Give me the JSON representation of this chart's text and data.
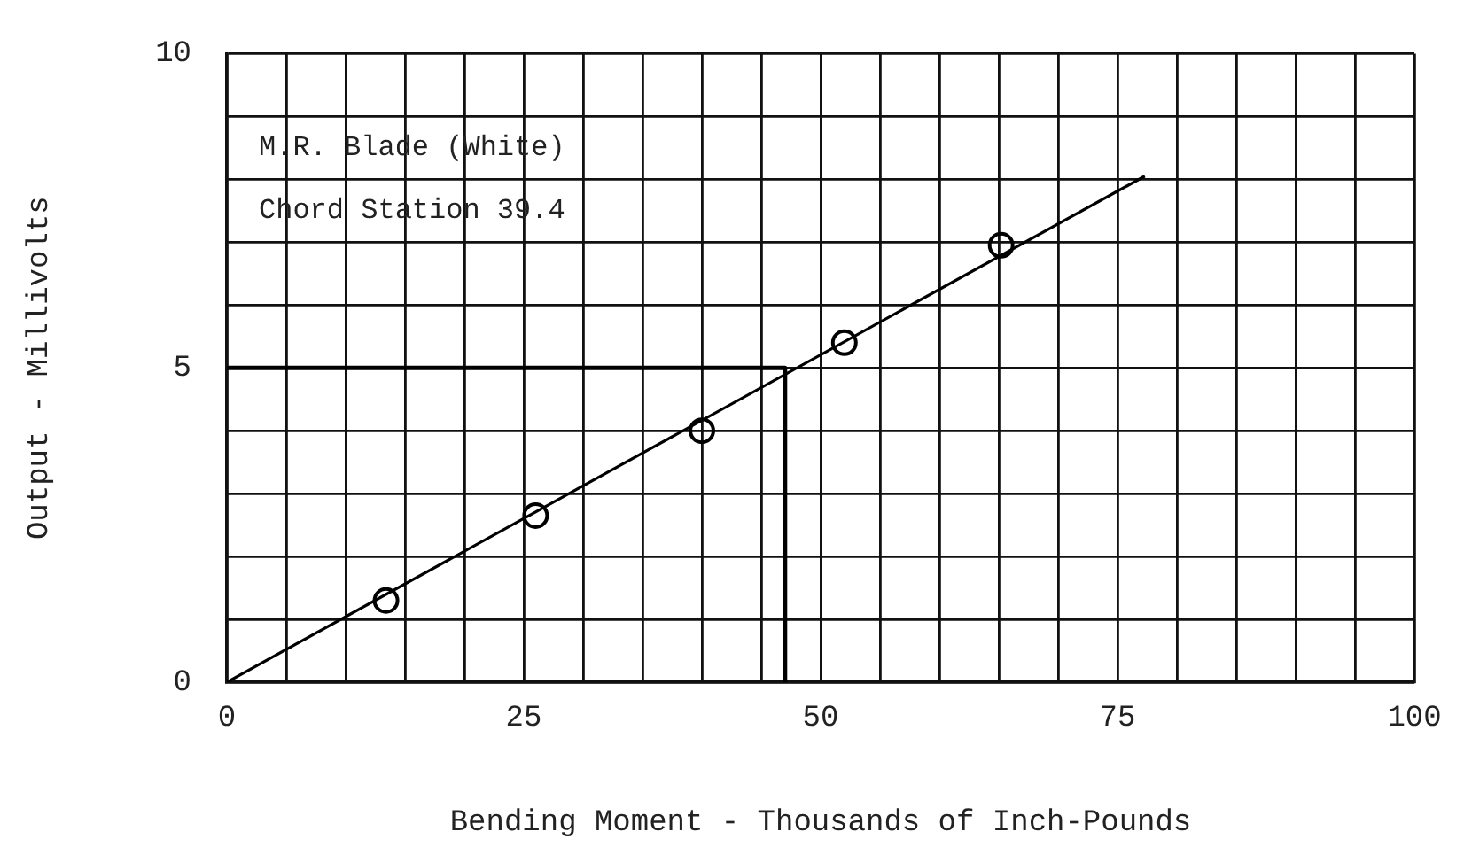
{
  "chart_data": {
    "type": "scatter",
    "xlabel": "Bending Moment - Thousands of Inch-Pounds",
    "ylabel": "Output - Millivolts",
    "annotations": [
      "M.R. Blade (White)",
      "Chord Station 39.4"
    ],
    "xlim": [
      0,
      100
    ],
    "ylim": [
      0,
      10
    ],
    "xticks": [
      0,
      {
        "value": 5,
        "label": null
      },
      {
        "value": 10,
        "label": null
      },
      {
        "value": 15,
        "label": null
      },
      {
        "value": 20,
        "label": null
      },
      25,
      {
        "value": 30,
        "label": null
      },
      {
        "value": 35,
        "label": null
      },
      {
        "value": 40,
        "label": null
      },
      {
        "value": 45,
        "label": null
      },
      50,
      {
        "value": 55,
        "label": null
      },
      {
        "value": 60,
        "label": null
      },
      {
        "value": 65,
        "label": null
      },
      {
        "value": 70,
        "label": null
      },
      75,
      {
        "value": 80,
        "label": null
      },
      {
        "value": 85,
        "label": null
      },
      {
        "value": 90,
        "label": null
      },
      {
        "value": 95,
        "label": null
      },
      100
    ],
    "yticks": [
      0,
      {
        "value": 1,
        "label": null
      },
      {
        "value": 2,
        "label": null
      },
      {
        "value": 3,
        "label": null
      },
      {
        "value": 4,
        "label": null
      },
      5,
      {
        "value": 6,
        "label": null
      },
      {
        "value": 7,
        "label": null
      },
      {
        "value": 8,
        "label": null
      },
      {
        "value": 9,
        "label": null
      },
      10
    ],
    "grid": true,
    "marker": "circle",
    "series": [
      {
        "type": "scatter",
        "color": "#000000",
        "x": [
          13.4,
          26,
          40,
          52,
          65.2
        ],
        "values": [
          1.3,
          2.65,
          4.0,
          5.4,
          6.95
        ]
      },
      {
        "type": "line",
        "color": "#000000",
        "marker": "none",
        "x": [
          0,
          77.3
        ],
        "values": [
          0,
          8.05
        ]
      },
      {
        "type": "line",
        "color": "#000000",
        "marker": "none",
        "x": [
          0,
          47,
          47
        ],
        "values": [
          5,
          5,
          0
        ]
      }
    ]
  }
}
